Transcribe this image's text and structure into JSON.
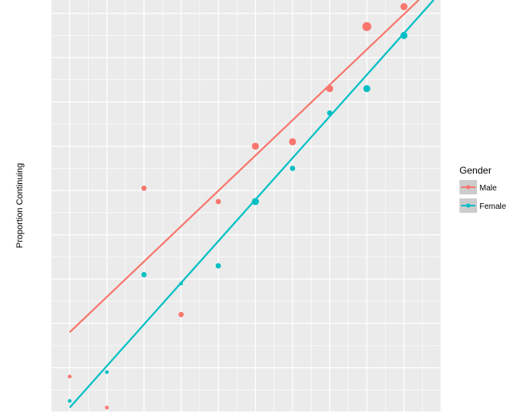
{
  "chart_data": {
    "type": "scatter",
    "title": "",
    "xlabel": "",
    "ylabel": "Proportion Continuing",
    "xlim": [
      0.5,
      11
    ],
    "ylim": [
      0,
      9.3
    ],
    "grid": true,
    "legend": {
      "title": "Gender",
      "position": "right",
      "entries": [
        "Male",
        "Female"
      ]
    },
    "series": [
      {
        "name": "Male",
        "color": "#F8766D",
        "points": [
          {
            "x": 1,
            "y": 0.8,
            "size": 1
          },
          {
            "x": 2,
            "y": 0.1,
            "size": 1
          },
          {
            "x": 3,
            "y": 5.05,
            "size": 2
          },
          {
            "x": 4,
            "y": 2.2,
            "size": 2
          },
          {
            "x": 5,
            "y": 4.75,
            "size": 2
          },
          {
            "x": 6,
            "y": 6.0,
            "size": 3
          },
          {
            "x": 7,
            "y": 6.1,
            "size": 3
          },
          {
            "x": 8,
            "y": 7.3,
            "size": 3
          },
          {
            "x": 9,
            "y": 8.7,
            "size": 4
          },
          {
            "x": 10,
            "y": 9.15,
            "size": 3
          }
        ],
        "fit": {
          "x": [
            1,
            10.4
          ],
          "y": [
            1.8,
            9.3
          ]
        }
      },
      {
        "name": "Female",
        "color": "#00BFC4",
        "points": [
          {
            "x": 1,
            "y": 0.25,
            "size": 1
          },
          {
            "x": 2,
            "y": 0.9,
            "size": 1
          },
          {
            "x": 3,
            "y": 3.1,
            "size": 2
          },
          {
            "x": 4,
            "y": 2.9,
            "size": 1
          },
          {
            "x": 5,
            "y": 3.3,
            "size": 2
          },
          {
            "x": 6,
            "y": 4.75,
            "size": 3
          },
          {
            "x": 7,
            "y": 5.5,
            "size": 2
          },
          {
            "x": 8,
            "y": 6.75,
            "size": 2
          },
          {
            "x": 9,
            "y": 7.3,
            "size": 3
          },
          {
            "x": 10,
            "y": 8.5,
            "size": 3
          }
        ],
        "fit": {
          "x": [
            1,
            10.8
          ],
          "y": [
            0.1,
            9.3
          ]
        }
      }
    ]
  }
}
